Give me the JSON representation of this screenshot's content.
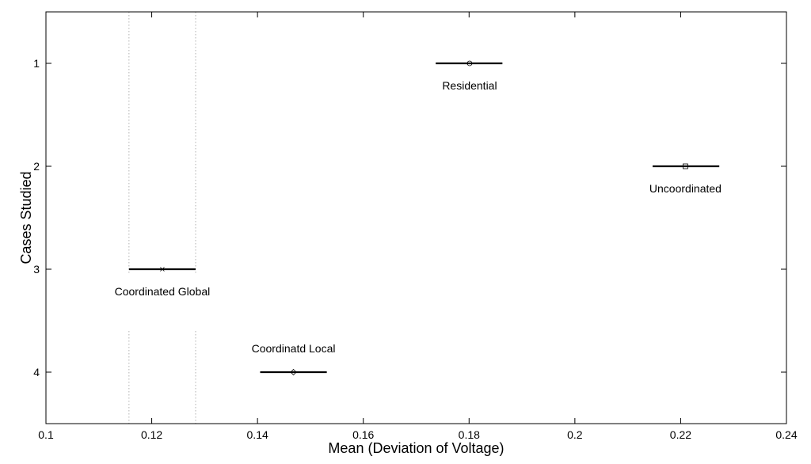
{
  "chart_data": {
    "type": "interval",
    "title": "",
    "xlabel": "Mean (Deviation of Voltage)",
    "ylabel": "Cases Studied",
    "xlim": [
      0.1,
      0.24
    ],
    "ylim": [
      0.5,
      4.5
    ],
    "y_reversed": true,
    "grid": false,
    "x_ticks": [
      0.1,
      0.12,
      0.14,
      0.16,
      0.18,
      0.2,
      0.22,
      0.24
    ],
    "x_tick_labels": [
      "0.1",
      "0.12",
      "0.14",
      "0.16",
      "0.18",
      "0.2",
      "0.22",
      "0.24"
    ],
    "y_ticks": [
      1,
      2,
      3,
      4
    ],
    "y_tick_labels": [
      "1",
      "2",
      "3",
      "4"
    ],
    "series": [
      {
        "case": 1,
        "label": "Residential",
        "mean": 0.1801,
        "low": 0.1737,
        "high": 0.1863,
        "marker": "circle"
      },
      {
        "case": 2,
        "label": "Uncoordinated",
        "mean": 0.2209,
        "low": 0.2147,
        "high": 0.2273,
        "marker": "square"
      },
      {
        "case": 3,
        "label": "Coordinated Global",
        "mean": 0.122,
        "low": 0.1157,
        "high": 0.1283,
        "marker": "x"
      },
      {
        "case": 4,
        "label": "Coordinatd Local",
        "mean": 0.1468,
        "low": 0.1405,
        "high": 0.1531,
        "marker": "diamond"
      }
    ],
    "reference_lines": {
      "style": "dotted",
      "x": [
        0.1157,
        0.1283
      ]
    }
  }
}
